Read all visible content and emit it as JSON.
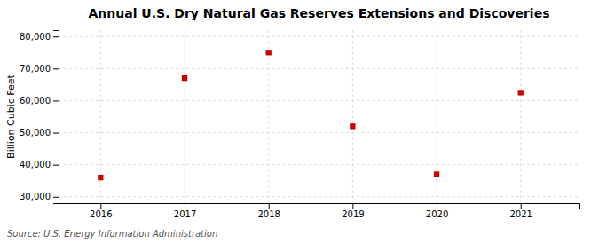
{
  "chart_data": {
    "type": "scatter",
    "title": "Annual U.S. Dry Natural Gas Reserves Extensions and Discoveries",
    "ylabel": "Billion Cubic Feet",
    "source": "Source: U.S. Energy Information Administration",
    "x": [
      2016,
      2017,
      2018,
      2019,
      2020,
      2021
    ],
    "values": [
      36000,
      67000,
      75000,
      52000,
      37000,
      62500
    ],
    "color": "#cc0000",
    "marker": "square",
    "xlim": [
      2015.5,
      2021.7
    ],
    "xticks": [
      2016,
      2017,
      2018,
      2019,
      2020,
      2021
    ],
    "ylim": [
      28000,
      82000
    ],
    "yticks": [
      {
        "value": 30000,
        "label": "30,000"
      },
      {
        "value": 40000,
        "label": "40,000"
      },
      {
        "value": 50000,
        "label": "50,000"
      },
      {
        "value": 60000,
        "label": "60,000"
      },
      {
        "value": 70000,
        "label": "70,000"
      },
      {
        "value": 80000,
        "label": "80,000"
      }
    ],
    "grid": true
  }
}
